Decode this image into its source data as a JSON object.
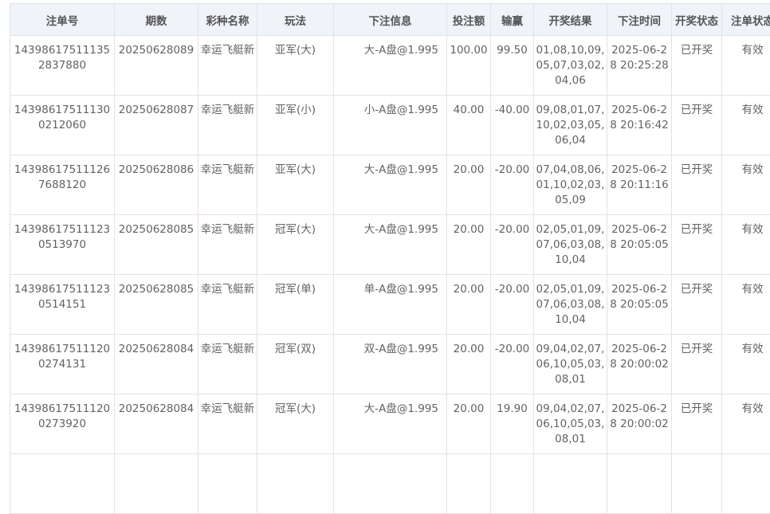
{
  "columns": [
    "注单号",
    "期数",
    "彩种名称",
    "玩法",
    "下注信息",
    "投注额",
    "输赢",
    "开奖结果",
    "下注时间",
    "开奖状态",
    "注单状态"
  ],
  "rows": [
    [
      "143986175111352837880",
      "20250628089",
      "幸运飞艇新",
      "亚军(大)",
      "大-A盘@1.995",
      "100.00",
      "99.50",
      "01,08,10,09,05,07,03,02,04,06",
      "2025-06-28 20:25:28",
      "已开奖",
      "有效"
    ],
    [
      "143986175111300212060",
      "20250628087",
      "幸运飞艇新",
      "亚军(小)",
      "小-A盘@1.995",
      "40.00",
      "-40.00",
      "09,08,01,07,10,02,03,05,06,04",
      "2025-06-28 20:16:42",
      "已开奖",
      "有效"
    ],
    [
      "143986175111267688120",
      "20250628086",
      "幸运飞艇新",
      "亚军(大)",
      "大-A盘@1.995",
      "20.00",
      "-20.00",
      "07,04,08,06,01,10,02,03,05,09",
      "2025-06-28 20:11:16",
      "已开奖",
      "有效"
    ],
    [
      "143986175111230513970",
      "20250628085",
      "幸运飞艇新",
      "冠军(大)",
      "大-A盘@1.995",
      "20.00",
      "-20.00",
      "02,05,01,09,07,06,03,08,10,04",
      "2025-06-28 20:05:05",
      "已开奖",
      "有效"
    ],
    [
      "143986175111230514151",
      "20250628085",
      "幸运飞艇新",
      "冠军(单)",
      "单-A盘@1.995",
      "20.00",
      "-20.00",
      "02,05,01,09,07,06,03,08,10,04",
      "2025-06-28 20:05:05",
      "已开奖",
      "有效"
    ],
    [
      "143986175111200274131",
      "20250628084",
      "幸运飞艇新",
      "冠军(双)",
      "双-A盘@1.995",
      "20.00",
      "-20.00",
      "09,04,02,07,06,10,05,03,08,01",
      "2025-06-28 20:00:02",
      "已开奖",
      "有效"
    ],
    [
      "143986175111200273920",
      "20250628084",
      "幸运飞艇新",
      "冠军(大)",
      "大-A盘@1.995",
      "20.00",
      "19.90",
      "09,04,02,07,06,10,05,03,08,01",
      "2025-06-28 20:00:02",
      "已开奖",
      "有效"
    ]
  ]
}
